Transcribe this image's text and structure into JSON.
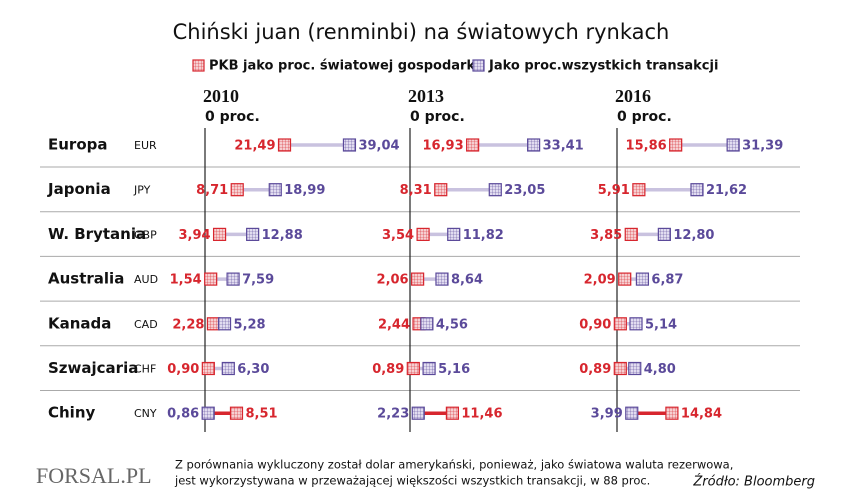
{
  "chart_data": {
    "type": "dumbbell",
    "title": "Chiński juan (renminbi) na światowych rynkach",
    "categories": [
      "Europa",
      "Japonia",
      "W. Brytania",
      "Australia",
      "Kanada",
      "Szwajcaria",
      "Chiny"
    ],
    "codes": [
      "EUR",
      "JPY",
      "GBP",
      "AUD",
      "CAD",
      "CHF",
      "CNY"
    ],
    "panels": [
      "2010",
      "2013",
      "2016"
    ],
    "xlim": [
      0,
      50
    ],
    "xticks": [
      {
        "value": 0,
        "label": "0 proc."
      }
    ],
    "series": [
      {
        "name": "PKB jako proc. światowej gospodarki",
        "color": "#d7262e",
        "values": [
          [
            21.49,
            8.71,
            3.94,
            1.54,
            2.28,
            0.9,
            8.51
          ],
          [
            16.93,
            8.31,
            3.54,
            2.06,
            2.44,
            0.89,
            11.46
          ],
          [
            15.86,
            5.91,
            3.85,
            2.09,
            0.9,
            0.89,
            14.84
          ]
        ],
        "value_labels": [
          [
            "21,49",
            "8,71",
            "3,94",
            "1,54",
            "2,28",
            "0,90",
            "8,51"
          ],
          [
            "16,93",
            "8,31",
            "3,54",
            "2,06",
            "2,44",
            "0,89",
            "11,46"
          ],
          [
            "15,86",
            "5,91",
            "3,85",
            "2,09",
            "0,90",
            "0,89",
            "14,84"
          ]
        ]
      },
      {
        "name": "Jako proc.wszystkich transakcji",
        "color": "#5b4a9a",
        "values": [
          [
            39.04,
            18.99,
            12.88,
            7.59,
            5.28,
            6.3,
            0.86
          ],
          [
            33.41,
            23.05,
            11.82,
            8.64,
            4.56,
            5.16,
            2.23
          ],
          [
            31.39,
            21.62,
            12.8,
            6.87,
            5.14,
            4.8,
            3.99
          ]
        ],
        "value_labels": [
          [
            "39,04",
            "18,99",
            "12,88",
            "7,59",
            "5,28",
            "6,30",
            "0,86"
          ],
          [
            "33,41",
            "23,05",
            "11,82",
            "8,64",
            "4,56",
            "5,16",
            "2,23"
          ],
          [
            "31,39",
            "21,62",
            "12,80",
            "6,87",
            "5,14",
            "4,80",
            "3,99"
          ]
        ]
      }
    ],
    "note": [
      "Z porównania wykluczony został dolar amerykański, ponieważ, jako światowa waluta rezerwowa,",
      "jest wykorzystywana w przeważającej większości wszystkich transakcji, w 88 proc."
    ],
    "source": "Źródło: Bloomberg",
    "logo": "FORSAL.PL"
  }
}
